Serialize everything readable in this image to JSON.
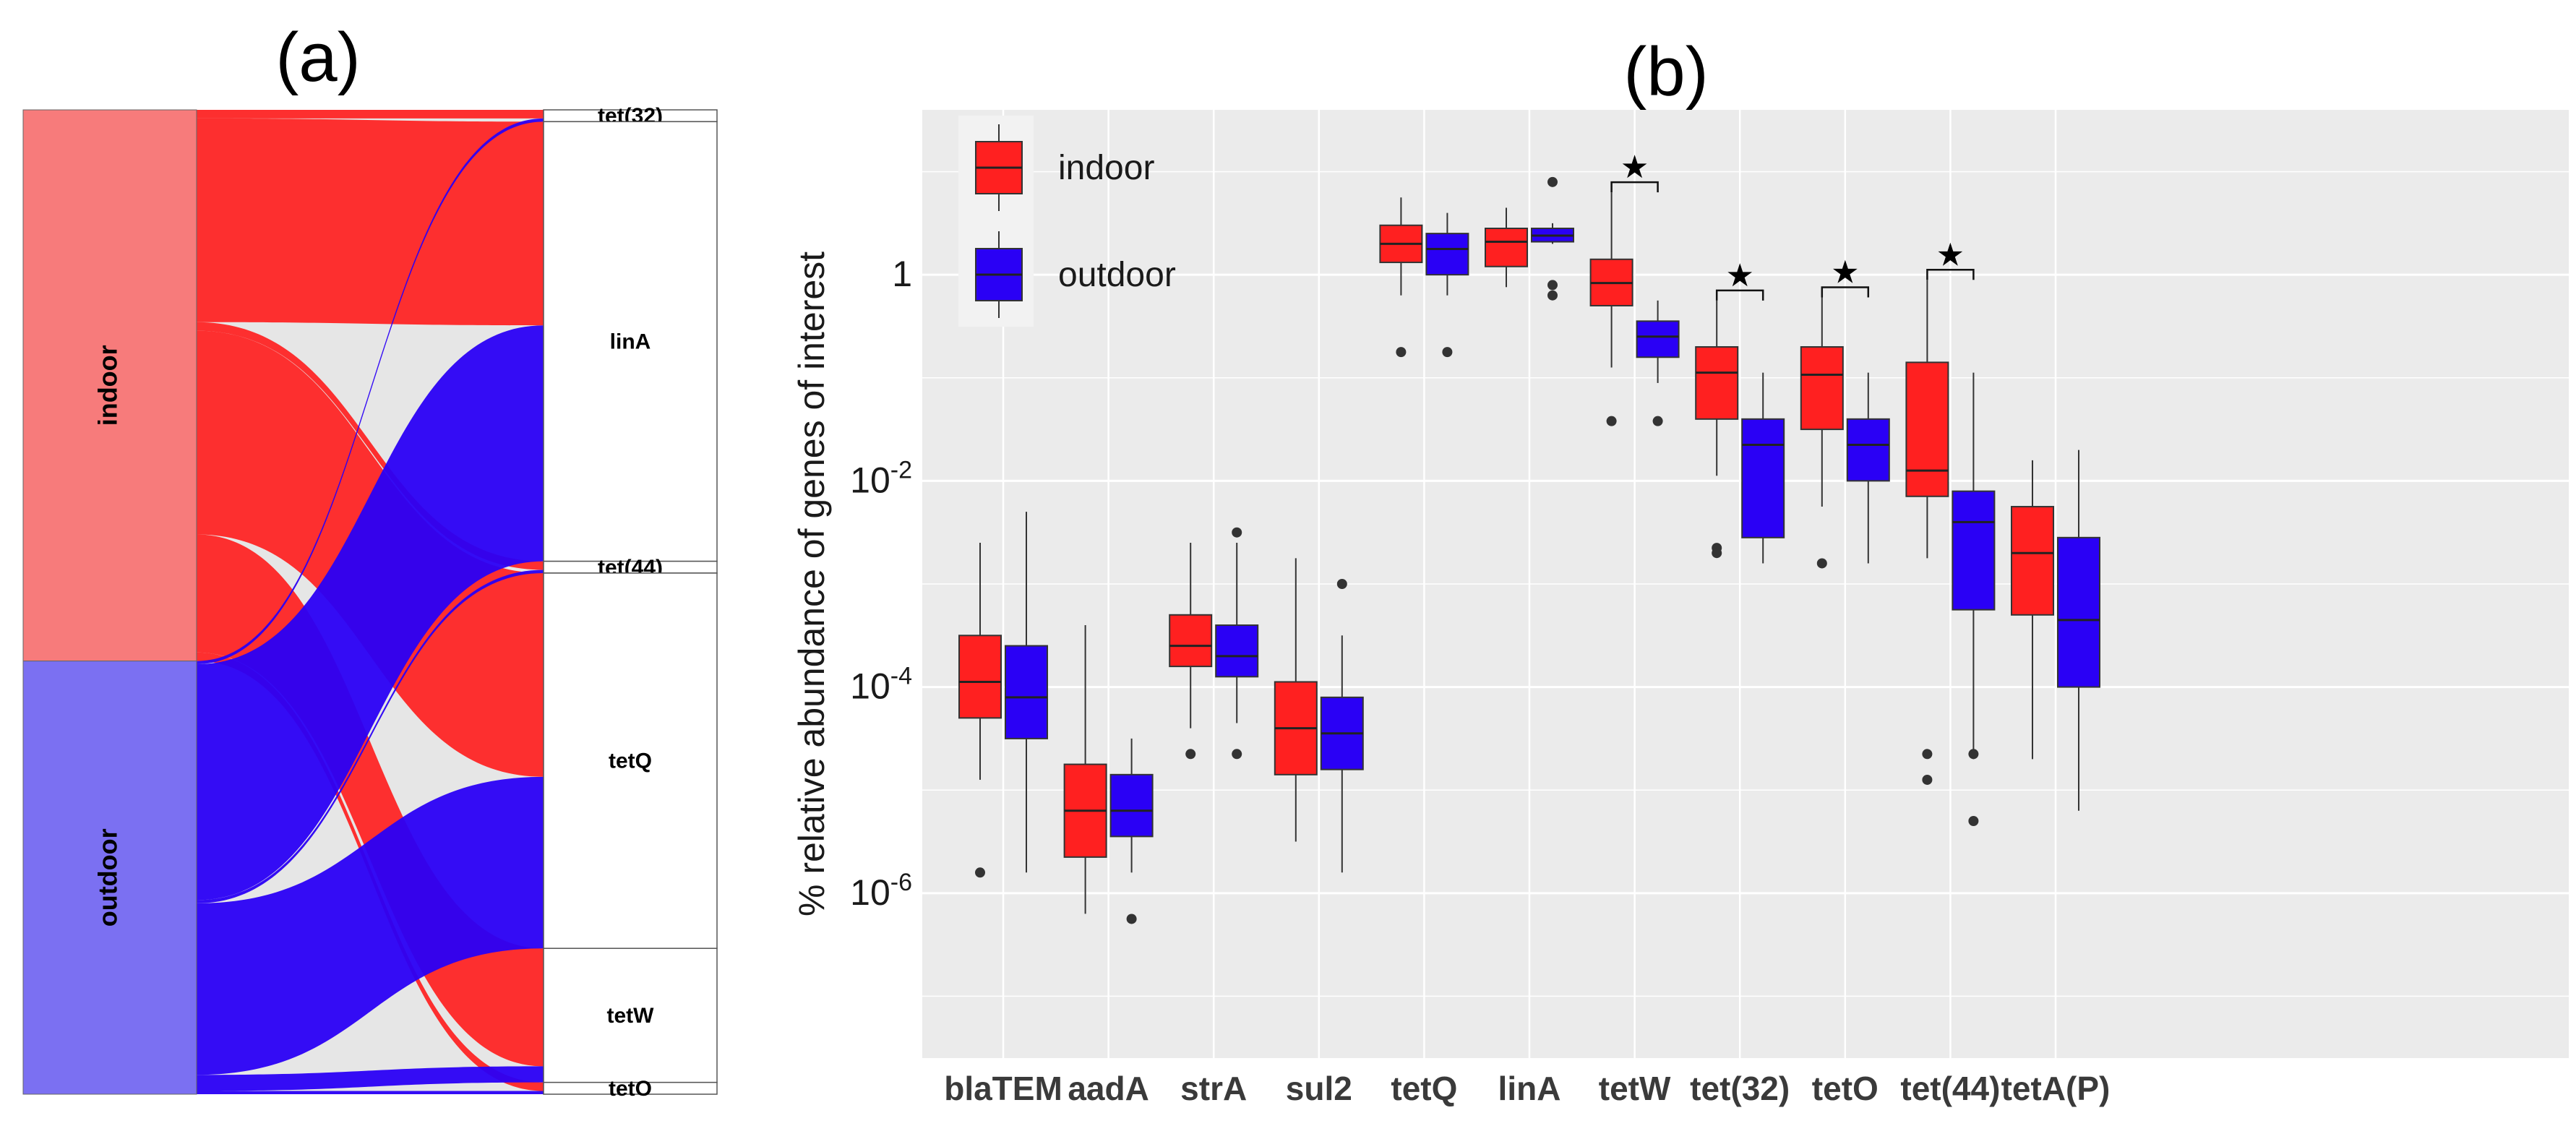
{
  "chart_data": [
    {
      "type": "sankey",
      "panel_label": "(a)",
      "sources": [
        "indoor",
        "outdoor"
      ],
      "targets": [
        "tet(32)",
        "linA",
        "tet(44)",
        "tetQ",
        "tetW",
        "tetO"
      ],
      "flows": [
        {
          "from": "indoor",
          "to": "tet(32)",
          "value": 0.8
        },
        {
          "from": "indoor",
          "to": "linA",
          "value": 19
        },
        {
          "from": "indoor",
          "to": "tet(44)",
          "value": 0.8
        },
        {
          "from": "indoor",
          "to": "tetQ",
          "value": 19
        },
        {
          "from": "indoor",
          "to": "tetW",
          "value": 11
        },
        {
          "from": "indoor",
          "to": "tetO",
          "value": 0.8
        },
        {
          "from": "outdoor",
          "to": "tet(32)",
          "value": 0.3
        },
        {
          "from": "outdoor",
          "to": "linA",
          "value": 22
        },
        {
          "from": "outdoor",
          "to": "tet(44)",
          "value": 0.3
        },
        {
          "from": "outdoor",
          "to": "tetQ",
          "value": 16
        },
        {
          "from": "outdoor",
          "to": "tetW",
          "value": 1.5
        },
        {
          "from": "outdoor",
          "to": "tetO",
          "value": 0.3
        }
      ],
      "colors": {
        "indoor_node": "#f77b7b",
        "outdoor_node": "#7b70f2",
        "indoor_flow": "#ff2020",
        "outdoor_flow": "#2a00f5",
        "mixed": "#d03a8a"
      }
    },
    {
      "type": "boxplot",
      "panel_label": "(b)",
      "ylabel": "% relative abundance of genes of interest",
      "yscale": "log10",
      "ylim_log10": [
        -7.6,
        1.6
      ],
      "ytick_labels": [
        {
          "base": "1",
          "exp": "",
          "log": 0
        },
        {
          "base": "10",
          "exp": "-2",
          "log": -2
        },
        {
          "base": "10",
          "exp": "-4",
          "log": -4
        },
        {
          "base": "10",
          "exp": "-6",
          "log": -6
        }
      ],
      "categories": [
        "blaTEM",
        "aadA",
        "strA",
        "sul2",
        "tetQ",
        "linA",
        "tetW",
        "tet(32)",
        "tetO",
        "tet(44)",
        "tetA(P)"
      ],
      "legend": [
        {
          "name": "indoor",
          "color": "#ff2020"
        },
        {
          "name": "outdoor",
          "color": "#2a00f5"
        }
      ],
      "significance_marker": "★",
      "significant": [
        "tetW",
        "tet(32)",
        "tetO",
        "tet(44)"
      ],
      "series": [
        {
          "name": "indoor",
          "boxes": [
            {
              "q1": -4.3,
              "median": -3.95,
              "q3": -3.5,
              "lo": -4.9,
              "hi": -2.6,
              "outliers": [
                -5.8
              ]
            },
            {
              "q1": -5.65,
              "median": -5.2,
              "q3": -4.75,
              "lo": -6.2,
              "hi": -3.4,
              "outliers": []
            },
            {
              "q1": -3.8,
              "median": -3.6,
              "q3": -3.3,
              "lo": -4.4,
              "hi": -2.6,
              "outliers": [
                -4.65
              ]
            },
            {
              "q1": -4.85,
              "median": -4.4,
              "q3": -3.95,
              "lo": -5.5,
              "hi": -2.75,
              "outliers": []
            },
            {
              "q1": 0.12,
              "median": 0.3,
              "q3": 0.48,
              "lo": -0.2,
              "hi": 0.75,
              "outliers": [
                -0.75
              ]
            },
            {
              "q1": 0.08,
              "median": 0.32,
              "q3": 0.45,
              "lo": -0.12,
              "hi": 0.65,
              "outliers": []
            },
            {
              "q1": -0.3,
              "median": -0.08,
              "q3": 0.15,
              "lo": -0.9,
              "hi": 0.8,
              "outliers": [
                -1.42
              ]
            },
            {
              "q1": -1.4,
              "median": -0.95,
              "q3": -0.7,
              "lo": -1.95,
              "hi": -0.25,
              "outliers": [
                -2.65,
                -2.7
              ]
            },
            {
              "q1": -1.5,
              "median": -0.97,
              "q3": -0.7,
              "lo": -2.25,
              "hi": -0.22,
              "outliers": [
                -2.8
              ]
            },
            {
              "q1": -2.15,
              "median": -1.9,
              "q3": -0.85,
              "lo": -2.75,
              "hi": -0.05,
              "outliers": [
                -4.65,
                -4.9
              ]
            },
            {
              "q1": -3.3,
              "median": -2.7,
              "q3": -2.25,
              "lo": -4.7,
              "hi": -1.8,
              "outliers": []
            }
          ]
        },
        {
          "name": "outdoor",
          "boxes": [
            {
              "q1": -4.5,
              "median": -4.1,
              "q3": -3.6,
              "lo": -5.8,
              "hi": -2.3,
              "outliers": []
            },
            {
              "q1": -5.45,
              "median": -5.2,
              "q3": -4.85,
              "lo": -5.8,
              "hi": -4.5,
              "outliers": [
                -6.25
              ]
            },
            {
              "q1": -3.9,
              "median": -3.7,
              "q3": -3.4,
              "lo": -4.35,
              "hi": -2.6,
              "outliers": [
                -2.5,
                -4.65
              ]
            },
            {
              "q1": -4.8,
              "median": -4.45,
              "q3": -4.1,
              "lo": -5.8,
              "hi": -3.5,
              "outliers": [
                -3.0
              ]
            },
            {
              "q1": 0.0,
              "median": 0.25,
              "q3": 0.4,
              "lo": -0.2,
              "hi": 0.6,
              "outliers": [
                -0.75
              ]
            },
            {
              "q1": 0.32,
              "median": 0.38,
              "q3": 0.45,
              "lo": 0.3,
              "hi": 0.5,
              "outliers": [
                0.9,
                -0.1,
                -0.2
              ]
            },
            {
              "q1": -0.8,
              "median": -0.6,
              "q3": -0.45,
              "lo": -1.05,
              "hi": -0.25,
              "outliers": [
                -1.42
              ]
            },
            {
              "q1": -2.55,
              "median": -1.65,
              "q3": -1.4,
              "lo": -2.8,
              "hi": -0.95,
              "outliers": []
            },
            {
              "q1": -2.0,
              "median": -1.65,
              "q3": -1.4,
              "lo": -2.8,
              "hi": -0.95,
              "outliers": []
            },
            {
              "q1": -3.25,
              "median": -2.4,
              "q3": -2.1,
              "lo": -4.7,
              "hi": -0.95,
              "outliers": [
                -4.65,
                -5.3
              ]
            },
            {
              "q1": -4.0,
              "median": -3.35,
              "q3": -2.55,
              "lo": -5.2,
              "hi": -1.7,
              "outliers": []
            }
          ]
        }
      ]
    }
  ]
}
